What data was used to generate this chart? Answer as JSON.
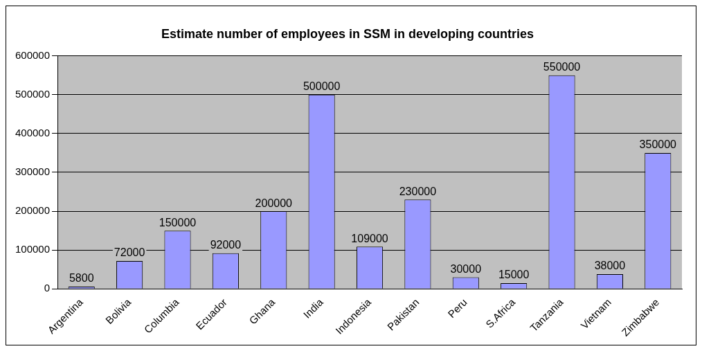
{
  "chart_data": {
    "type": "bar",
    "title": "Estimate number of employees in SSM in developing countries",
    "categories": [
      "Argentina",
      "Bolivia",
      "Columbia",
      "Ecuador",
      "Ghana",
      "India",
      "Indonesia",
      "Pakistan",
      "Peru",
      "S.Africa",
      "Tanzania",
      "Vietnam",
      "Zimbabwe"
    ],
    "values": [
      5800,
      72000,
      150000,
      92000,
      200000,
      500000,
      109000,
      230000,
      30000,
      15000,
      550000,
      38000,
      350000
    ],
    "color": "#9999ff",
    "ylim": [
      0,
      600000
    ],
    "yticks": [
      0,
      100000,
      200000,
      300000,
      400000,
      500000,
      600000
    ],
    "grid": "y",
    "data_labels": true,
    "legend": false
  }
}
